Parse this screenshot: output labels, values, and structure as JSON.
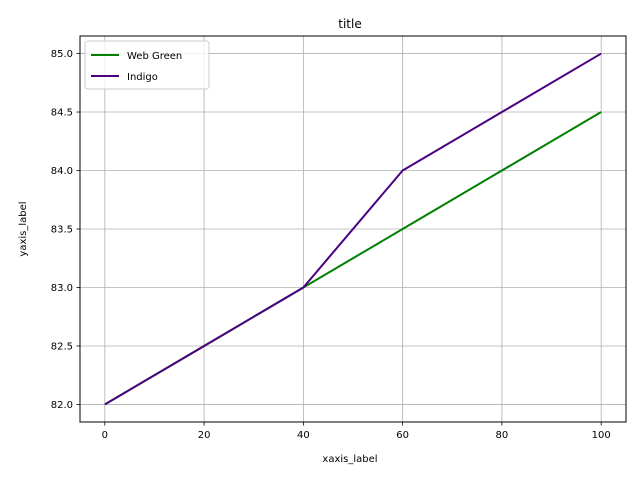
{
  "chart_data": {
    "type": "line",
    "title": "title",
    "xlabel": "xaxis_label",
    "ylabel": "yaxis_label",
    "x": [
      0,
      20,
      40,
      60,
      80,
      100
    ],
    "xlim": [
      -5,
      105
    ],
    "ylim": [
      81.85,
      85.15
    ],
    "xticks": [
      0,
      20,
      40,
      60,
      80,
      100
    ],
    "yticks": [
      82.0,
      82.5,
      83.0,
      83.5,
      84.0,
      84.5,
      85.0
    ],
    "xtick_labels": [
      "0",
      "20",
      "40",
      "60",
      "80",
      "100"
    ],
    "ytick_labels": [
      "82.0",
      "82.5",
      "83.0",
      "83.5",
      "84.0",
      "84.5",
      "85.0"
    ],
    "grid": true,
    "legend_position": "top-left",
    "series": [
      {
        "name": "Web Green",
        "color": "#008000",
        "values": [
          82.0,
          82.5,
          83.0,
          83.5,
          84.0,
          84.5
        ]
      },
      {
        "name": "Indigo",
        "color": "#4B0082",
        "values": [
          82.0,
          82.5,
          83.0,
          84.0,
          84.5,
          85.0
        ]
      }
    ]
  }
}
